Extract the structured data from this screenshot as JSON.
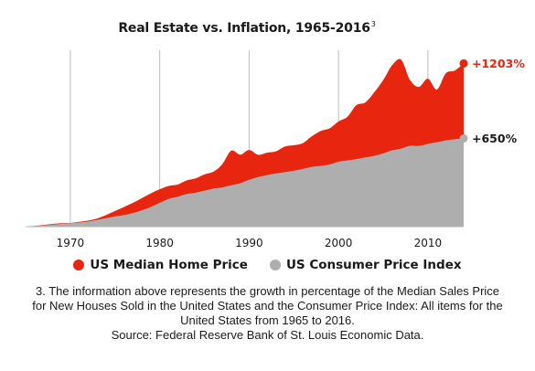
{
  "colors": {
    "home_price": "#e8260f",
    "cpi": "#aeaeae",
    "grid": "#bdbdbd",
    "baseline": "#d9d9d9"
  },
  "chart_data": {
    "type": "area",
    "title": "Real Estate vs. Inflation, 1965-2016",
    "title_superscript": "3",
    "xlabel": "",
    "ylabel": "",
    "xlim": [
      1965,
      2014
    ],
    "ylim": [
      0,
      1300
    ],
    "x_ticks": [
      1970,
      1980,
      1990,
      2000,
      2010
    ],
    "grid": "vertical",
    "legend_position": "bottom",
    "series": [
      {
        "name": "US Median Home Price",
        "color": "#e8260f",
        "end_label": "+1203%",
        "x": [
          1965,
          1966,
          1967,
          1968,
          1969,
          1970,
          1971,
          1972,
          1973,
          1974,
          1975,
          1976,
          1977,
          1978,
          1979,
          1980,
          1981,
          1982,
          1983,
          1984,
          1985,
          1986,
          1987,
          1988,
          1989,
          1990,
          1991,
          1992,
          1993,
          1994,
          1995,
          1996,
          1997,
          1998,
          1999,
          2000,
          2001,
          2002,
          2003,
          2004,
          2005,
          2006,
          2007,
          2008,
          2009,
          2010,
          2011,
          2012,
          2013,
          2014
        ],
        "values": [
          0,
          5,
          12,
          20,
          25,
          27,
          35,
          45,
          60,
          85,
          115,
          145,
          175,
          210,
          245,
          275,
          300,
          310,
          340,
          355,
          385,
          405,
          460,
          560,
          530,
          565,
          530,
          545,
          555,
          590,
          600,
          615,
          665,
          705,
          725,
          775,
          810,
          895,
          915,
          990,
          1080,
          1190,
          1230,
          1080,
          1030,
          1090,
          1010,
          1130,
          1150,
          1203
        ]
      },
      {
        "name": "US Consumer Price Index",
        "color": "#aeaeae",
        "end_label": "+650%",
        "x": [
          1965,
          1966,
          1967,
          1968,
          1969,
          1970,
          1971,
          1972,
          1973,
          1974,
          1975,
          1976,
          1977,
          1978,
          1979,
          1980,
          1981,
          1982,
          1983,
          1984,
          1985,
          1986,
          1987,
          1988,
          1989,
          1990,
          1991,
          1992,
          1993,
          1994,
          1995,
          1996,
          1997,
          1998,
          1999,
          2000,
          2001,
          2002,
          2003,
          2004,
          2005,
          2006,
          2007,
          2008,
          2009,
          2010,
          2011,
          2012,
          2013,
          2014
        ],
        "values": [
          0,
          3,
          8,
          15,
          20,
          25,
          30,
          38,
          50,
          62,
          75,
          85,
          100,
          120,
          145,
          175,
          205,
          220,
          240,
          250,
          265,
          280,
          290,
          305,
          320,
          345,
          365,
          380,
          392,
          402,
          412,
          425,
          440,
          448,
          458,
          478,
          488,
          498,
          510,
          522,
          540,
          562,
          575,
          595,
          595,
          610,
          622,
          636,
          644,
          650
        ]
      }
    ]
  },
  "legend": {
    "items": [
      {
        "label": "US Median Home Price",
        "color": "#e8260f"
      },
      {
        "label": "US Consumer Price Index",
        "color": "#aeaeae"
      }
    ]
  },
  "footnote": {
    "lines": [
      "3. The information above represents the growth in percentage of the Median Sales Price",
      "for New Houses Sold in the United States and the Consumer Price Index: All items for the",
      "United States from 1965 to 2016.",
      "Source: Federal Reserve Bank of St. Louis Economic Data."
    ]
  }
}
